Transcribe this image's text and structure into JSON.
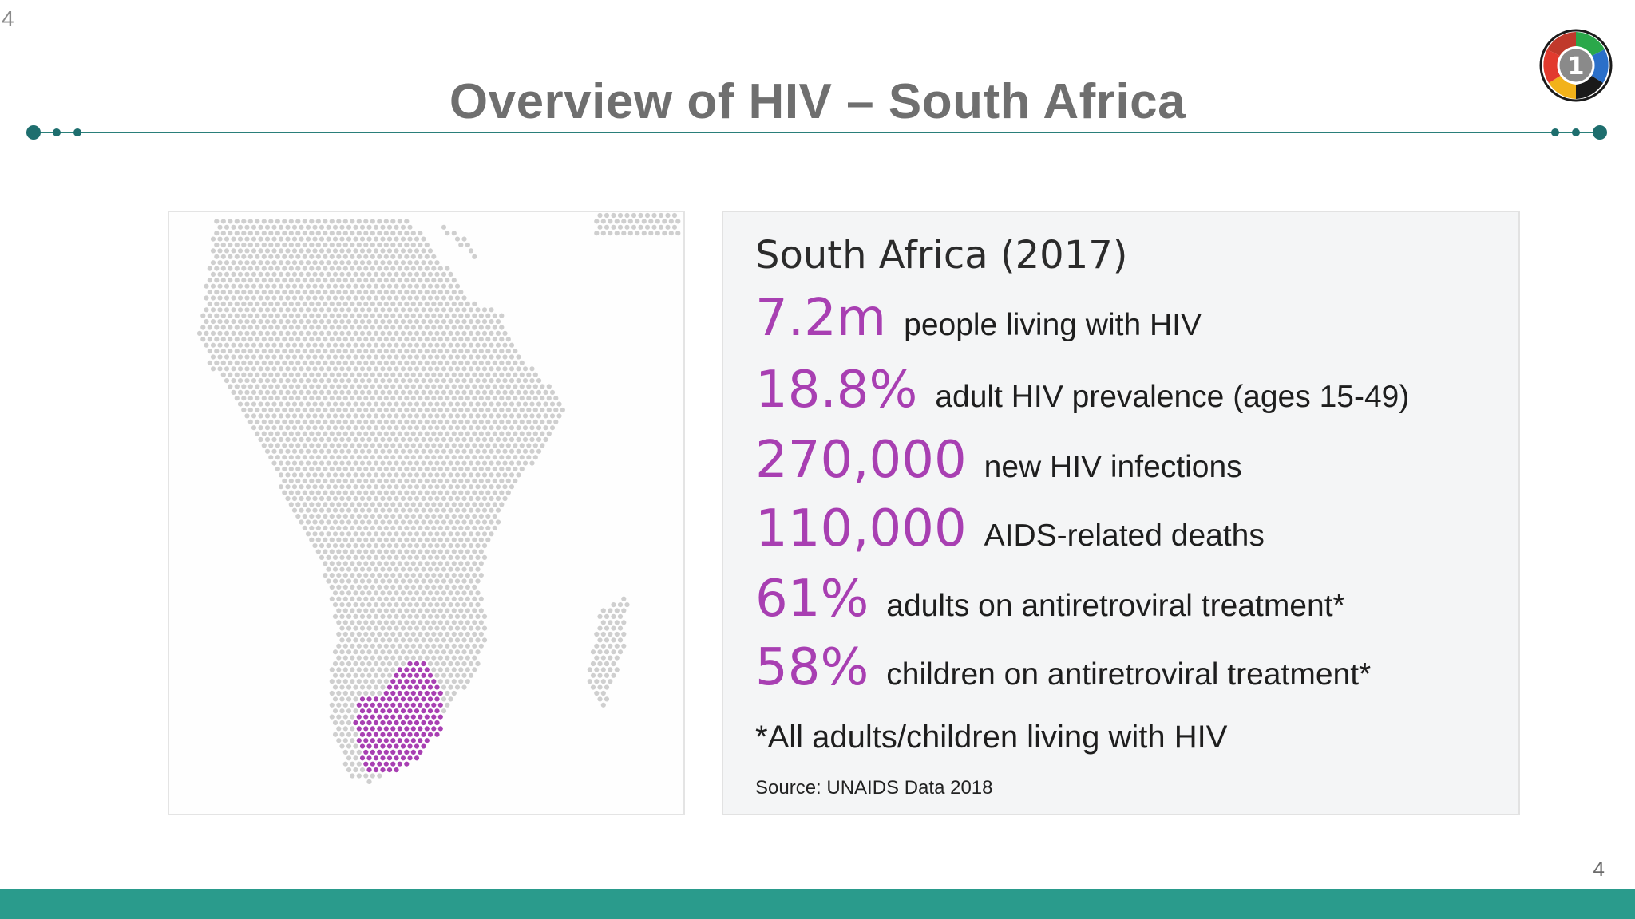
{
  "slide": {
    "number_top": "4",
    "number_bottom": "4",
    "title": "Overview of HIV – South Africa"
  },
  "logo": {
    "label": "1"
  },
  "map": {
    "highlight_color": "#a83fb2",
    "base_color": "#cfcfcf"
  },
  "stats": {
    "heading": "South Africa (2017)",
    "items": [
      {
        "value": "7.2m",
        "label": "people living with HIV"
      },
      {
        "value": "18.8%",
        "label": "adult HIV prevalence (ages 15-49)"
      },
      {
        "value": "270,000",
        "label": "new HIV infections"
      },
      {
        "value": "110,000",
        "label": "AIDS-related deaths"
      },
      {
        "value": "61%",
        "label": "adults on antiretroviral treatment*"
      },
      {
        "value": "58%",
        "label": "children on antiretroviral treatment*"
      }
    ],
    "footnote": "*All adults/children living with HIV",
    "source": "Source: UNAIDS Data 2018"
  },
  "colors": {
    "accent": "#1e6e6e",
    "bar": "#2a9b8c",
    "value": "#a83fb2"
  }
}
